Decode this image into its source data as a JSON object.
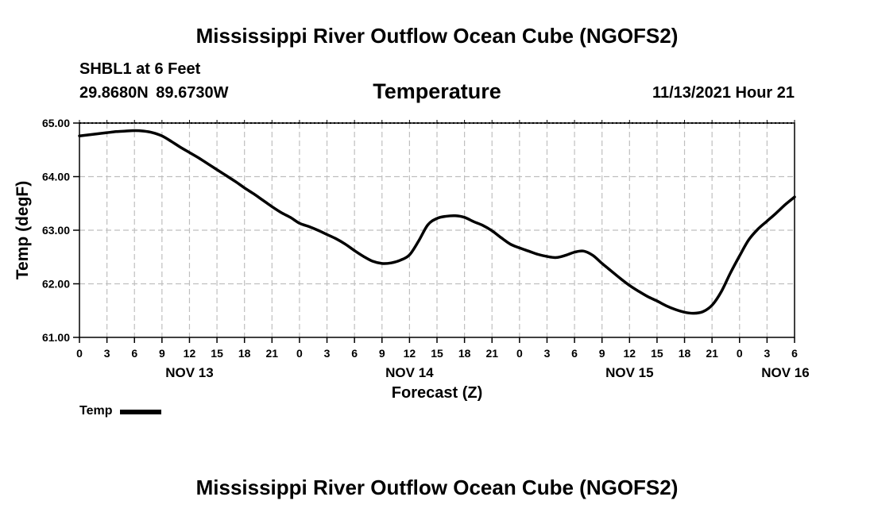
{
  "header": {
    "title": "Mississippi River Outflow Ocean Cube (NGOFS2)",
    "station": "SHBL1 at 6 Feet",
    "coordinates": "29.8680N  89.6730W",
    "valid_time": "11/13/2021 Hour 21"
  },
  "footer": {
    "title": "Mississippi River Outflow Ocean Cube (NGOFS2)"
  },
  "chart_data": {
    "type": "line",
    "title": "Temperature",
    "xlabel": "Forecast (Z)",
    "ylabel": "Temp (degF)",
    "ylim": [
      61.0,
      65.0
    ],
    "xlim_hours": [
      0,
      78
    ],
    "y_ticks": [
      "61.00",
      "62.00",
      "63.00",
      "64.00",
      "65.00"
    ],
    "x_ticks": [
      "0",
      "3",
      "6",
      "9",
      "12",
      "15",
      "18",
      "21",
      "0",
      "3",
      "6",
      "9",
      "12",
      "15",
      "18",
      "21",
      "0",
      "3",
      "6",
      "9",
      "12",
      "15",
      "18",
      "21",
      "0",
      "3",
      "6"
    ],
    "date_labels": [
      {
        "label": "NOV 13",
        "hour": 12
      },
      {
        "label": "NOV 14",
        "hour": 36
      },
      {
        "label": "NOV 15",
        "hour": 60
      },
      {
        "label": "NOV 16",
        "hour": 77
      }
    ],
    "grid": true,
    "legend": "bottom-left",
    "series": [
      {
        "name": "Temp",
        "x_hours": [
          0,
          1,
          2,
          3,
          4,
          5,
          6,
          7,
          8,
          9,
          10,
          11,
          12,
          13,
          14,
          15,
          16,
          17,
          18,
          19,
          20,
          21,
          22,
          23,
          24,
          25,
          26,
          27,
          28,
          29,
          30,
          31,
          32,
          33,
          34,
          35,
          36,
          37,
          38,
          39,
          40,
          41,
          42,
          43,
          44,
          45,
          46,
          47,
          48,
          49,
          50,
          51,
          52,
          53,
          54,
          55,
          56,
          57,
          58,
          59,
          60,
          61,
          62,
          63,
          64,
          65,
          66,
          67,
          68,
          69,
          70,
          71,
          72,
          73,
          74,
          75,
          76,
          77,
          78
        ],
        "values": [
          64.76,
          64.78,
          64.8,
          64.82,
          64.84,
          64.85,
          64.86,
          64.85,
          64.82,
          64.76,
          64.66,
          64.55,
          64.45,
          64.35,
          64.24,
          64.13,
          64.02,
          63.91,
          63.79,
          63.68,
          63.56,
          63.44,
          63.33,
          63.24,
          63.13,
          63.07,
          63.0,
          62.92,
          62.84,
          62.74,
          62.62,
          62.51,
          62.42,
          62.38,
          62.39,
          62.44,
          62.54,
          62.8,
          63.1,
          63.22,
          63.26,
          63.27,
          63.24,
          63.16,
          63.09,
          62.99,
          62.86,
          62.74,
          62.67,
          62.61,
          62.55,
          62.51,
          62.49,
          62.53,
          62.59,
          62.61,
          62.53,
          62.38,
          62.24,
          62.1,
          61.97,
          61.86,
          61.76,
          61.68,
          61.59,
          61.52,
          61.47,
          61.45,
          61.48,
          61.6,
          61.85,
          62.2,
          62.52,
          62.82,
          63.02,
          63.17,
          63.32,
          63.48,
          63.62
        ]
      }
    ]
  },
  "legend": {
    "label": "Temp"
  }
}
